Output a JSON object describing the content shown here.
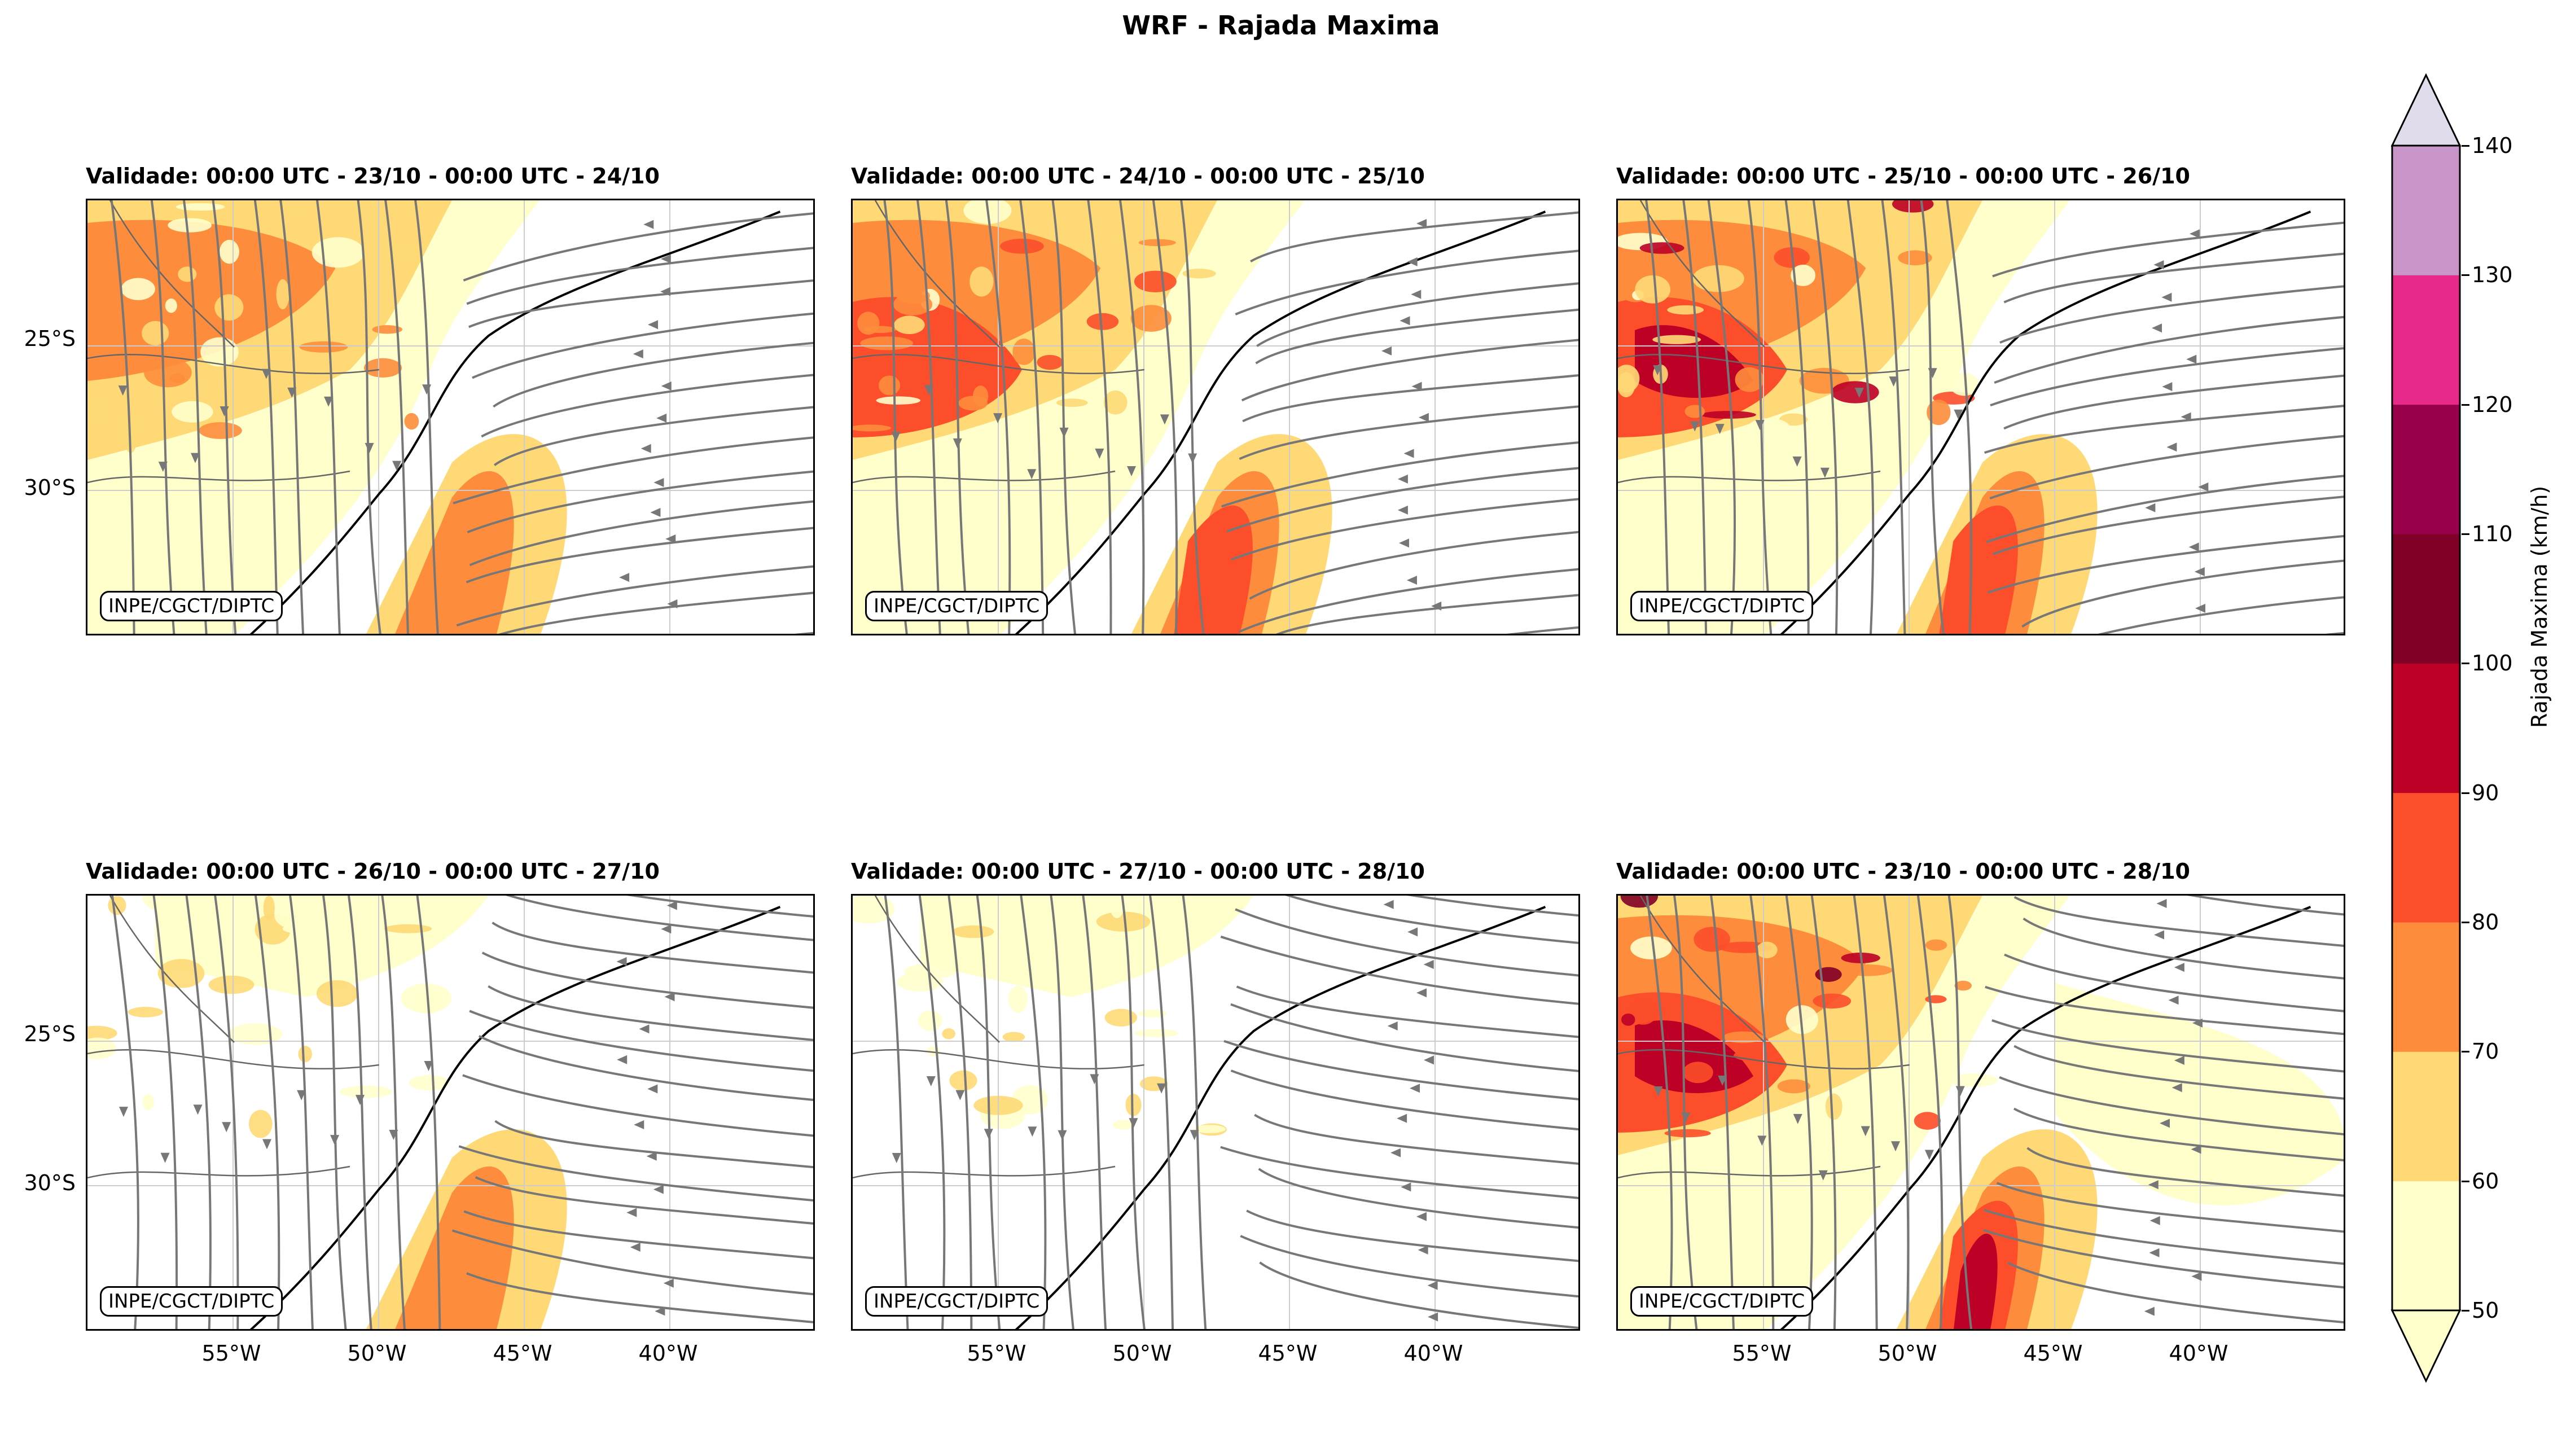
{
  "title": "WRF - Rajada Maxima",
  "credit_label": "INPE/CGCT/DIPTC",
  "panels": [
    {
      "title": "Validade: 00:00 UTC - 23/10 - 00:00 UTC - 24/10",
      "intensity": 1
    },
    {
      "title": "Validade: 00:00 UTC - 24/10 - 00:00 UTC - 25/10",
      "intensity": 2
    },
    {
      "title": "Validade: 00:00 UTC - 25/10 - 00:00 UTC - 26/10",
      "intensity": 3
    },
    {
      "title": "Validade: 00:00 UTC - 26/10 - 00:00 UTC - 27/10",
      "intensity": 0
    },
    {
      "title": "Validade: 00:00 UTC - 27/10 - 00:00 UTC - 28/10",
      "intensity": 0
    },
    {
      "title": "Validade: 00:00 UTC - 23/10 - 00:00 UTC - 28/10",
      "intensity": 4
    }
  ],
  "lat_labels": [
    "25°S",
    "30°S"
  ],
  "lon_labels": [
    "55°W",
    "50°W",
    "45°W",
    "40°W"
  ],
  "colorbar": {
    "label": "Rajada Maxima (km/h)",
    "ticks": [
      "50",
      "60",
      "70",
      "80",
      "90",
      "100",
      "110",
      "120",
      "130",
      "140"
    ],
    "colors": [
      "#ffffcc",
      "#fed976",
      "#fd8d3c",
      "#fc4e2a",
      "#bd0026",
      "#800026",
      "#99004c",
      "#e7298a",
      "#c994c7",
      "#e0dcec"
    ]
  }
}
